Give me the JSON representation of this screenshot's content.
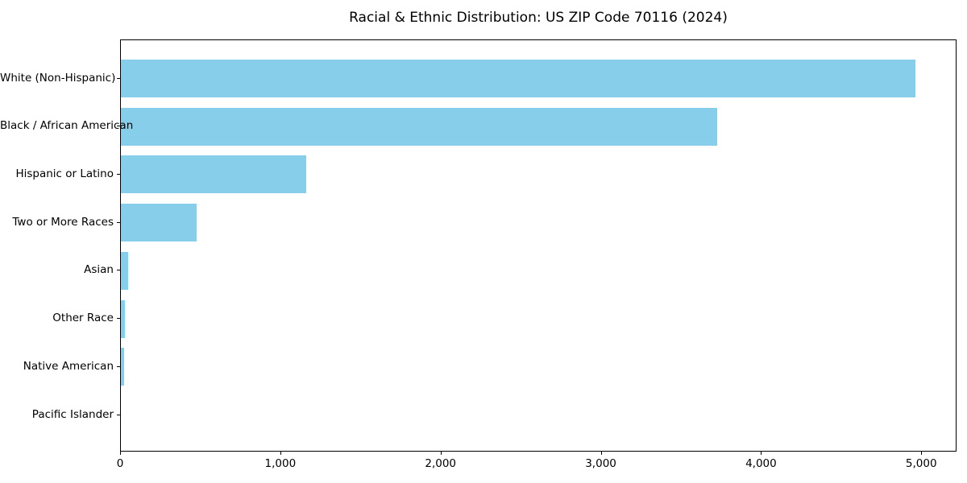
{
  "title": "Racial & Ethnic Distribution: US ZIP Code 70116 (2024)",
  "chart_data": {
    "type": "bar",
    "orientation": "horizontal",
    "title": "Racial & Ethnic Distribution: US ZIP Code 70116 (2024)",
    "xlabel": "",
    "ylabel": "",
    "categories": [
      "White (Non-Hispanic)",
      "Black / African American",
      "Hispanic or Latino",
      "Two or More Races",
      "Asian",
      "Other Race",
      "Native American",
      "Pacific Islander"
    ],
    "values": [
      4960,
      3720,
      1155,
      475,
      45,
      25,
      20,
      0
    ],
    "xlim": [
      0,
      5220
    ],
    "xticks": [
      0,
      1000,
      2000,
      3000,
      4000,
      5000
    ],
    "xtick_labels": [
      "0",
      "1,000",
      "2,000",
      "3,000",
      "4,000",
      "5,000"
    ],
    "bar_color": "#87CEEB",
    "frame_color": "#000000",
    "grid": false,
    "legend": null
  }
}
